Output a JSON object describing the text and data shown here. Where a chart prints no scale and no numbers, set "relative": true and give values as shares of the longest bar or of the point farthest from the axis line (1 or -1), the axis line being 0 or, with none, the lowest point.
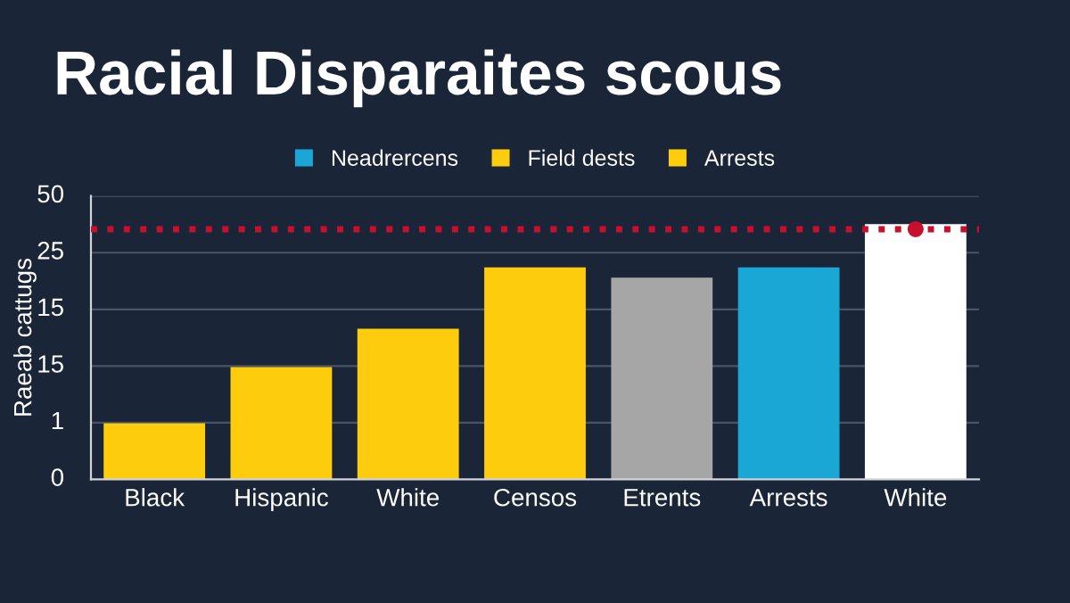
{
  "chart_data": {
    "type": "bar",
    "title": "Racial Disparaites scous",
    "ylabel": "Raeab cattugs",
    "relative": true,
    "categories": [
      "Black",
      "Hispanic",
      "White",
      "Censos",
      "Etrents",
      "Arrests",
      "White"
    ],
    "series": [
      {
        "name": "Neadrercens",
        "color": "#1aa7d6",
        "values": [
          null,
          null,
          null,
          null,
          null,
          0.83,
          null
        ]
      },
      {
        "name": "Field dests",
        "color": "#fdcc0d",
        "values": [
          0.22,
          0.44,
          0.59,
          null,
          null,
          null,
          null
        ]
      },
      {
        "name": "Arrests",
        "color": "#fdcc0d",
        "values": [
          null,
          null,
          null,
          0.83,
          null,
          null,
          null
        ]
      },
      {
        "color": "#a6a6a6",
        "values": [
          null,
          null,
          null,
          null,
          0.79,
          null,
          null
        ]
      },
      {
        "color": "#ffffff",
        "values": [
          null,
          null,
          null,
          null,
          null,
          null,
          1.0
        ]
      },
      {
        "type": "scatter",
        "color": "#c8102e",
        "values": [
          null,
          null,
          null,
          null,
          null,
          null,
          0.98
        ]
      }
    ],
    "annotations": [
      "0",
      "1",
      "15",
      "15",
      "25",
      "50"
    ],
    "ref_lines": [
      {
        "axis": "y",
        "value": 0.98,
        "color": "#c8102e",
        "line_style": "dotted"
      }
    ],
    "grid": "y",
    "legend": "top"
  }
}
